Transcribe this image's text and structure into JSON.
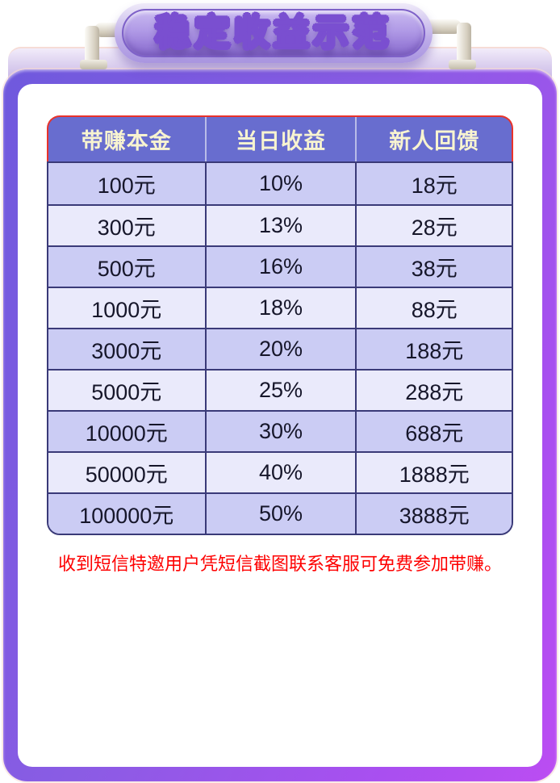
{
  "banner": {
    "title": "稳定收益示范"
  },
  "table": {
    "columns": [
      "带赚本金",
      "当日收益",
      "新人回馈"
    ],
    "rows": [
      [
        "100元",
        "10%",
        "18元"
      ],
      [
        "300元",
        "13%",
        "28元"
      ],
      [
        "500元",
        "16%",
        "38元"
      ],
      [
        "1000元",
        "18%",
        "88元"
      ],
      [
        "3000元",
        "20%",
        "188元"
      ],
      [
        "5000元",
        "25%",
        "288元"
      ],
      [
        "10000元",
        "30%",
        "688元"
      ],
      [
        "50000元",
        "40%",
        "1888元"
      ],
      [
        "100000元",
        "50%",
        "3888元"
      ]
    ]
  },
  "note": {
    "text": "收到短信特邀用户凭短信截图联系客服可免费参加带赚。"
  },
  "colors": {
    "header_bg": "#686dcf",
    "header_text": "#f8f4d0",
    "row_dark": "#cbccf4",
    "row_light": "#eaeafb",
    "body_border": "#3a3a78",
    "header_border": "#e8332b",
    "note_red": "#fe0000",
    "frame_gradient_start": "#6f59dd",
    "frame_gradient_end": "#bb4df2",
    "title_gold": "#f2b45a",
    "title_outline": "#7a4fd0"
  }
}
